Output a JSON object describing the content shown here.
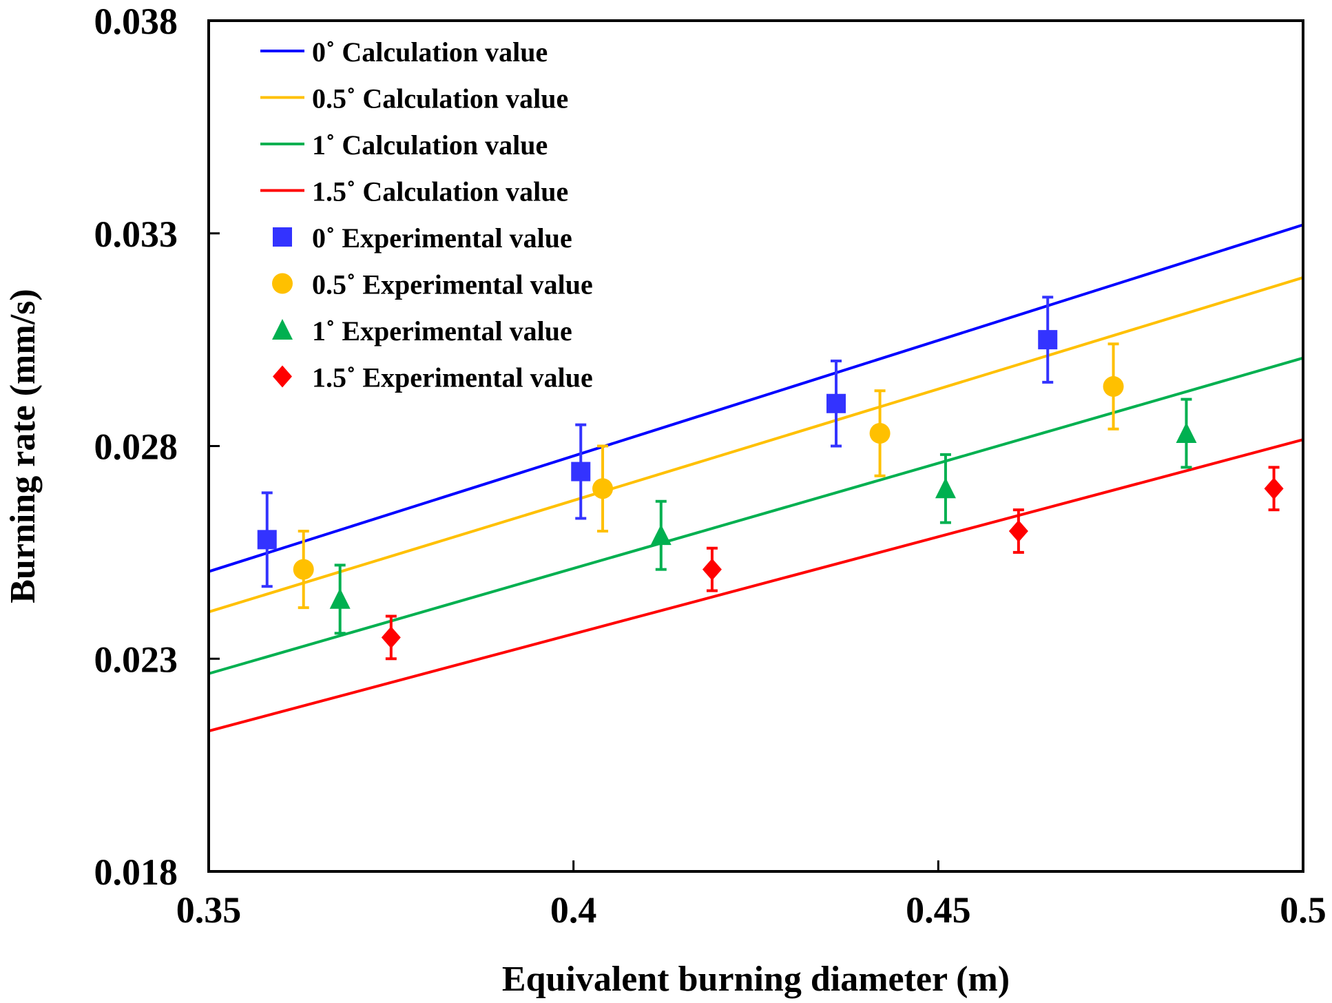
{
  "chart_data": {
    "type": "scatter",
    "title": "",
    "xlabel": "Equivalent burning diameter (m)",
    "ylabel": "Burning rate (mm/s)",
    "xlim": [
      0.35,
      0.5
    ],
    "ylim": [
      0.018,
      0.038
    ],
    "x_ticks": [
      0.35,
      0.4,
      0.45,
      0.5
    ],
    "x_tick_labels": [
      "0.35",
      "0.4",
      "0.45",
      "0.5"
    ],
    "y_ticks": [
      0.018,
      0.023,
      0.028,
      0.033,
      0.038
    ],
    "y_tick_labels": [
      "0.018",
      "0.023",
      "0.028",
      "0.033",
      "0.038"
    ],
    "grid": false,
    "legend_position": "top-left",
    "line_series": [
      {
        "name": "0˚ Calculation value",
        "color": "#0000ff",
        "x": [
          0.35,
          0.5
        ],
        "y": [
          0.02505,
          0.0332
        ]
      },
      {
        "name": "0.5˚ Calculation value",
        "color": "#ffc000",
        "x": [
          0.35,
          0.5
        ],
        "y": [
          0.0241,
          0.03196
        ]
      },
      {
        "name": "1˚ Calculation value",
        "color": "#00b050",
        "x": [
          0.35,
          0.5
        ],
        "y": [
          0.02265,
          0.03007
        ]
      },
      {
        "name": "1.5˚ Calculation value",
        "color": "#ff0000",
        "x": [
          0.35,
          0.5
        ],
        "y": [
          0.0213,
          0.02815
        ]
      }
    ],
    "point_series": [
      {
        "name": "0˚ Experimental value",
        "color": "#3333ff",
        "marker": "square",
        "x": [
          0.358,
          0.401,
          0.436,
          0.465
        ],
        "y": [
          0.0258,
          0.0274,
          0.029,
          0.0305
        ],
        "err": [
          0.0011,
          0.0011,
          0.001,
          0.001
        ]
      },
      {
        "name": "0.5˚ Experimental value",
        "color": "#ffc000",
        "marker": "circle",
        "x": [
          0.363,
          0.404,
          0.442,
          0.474
        ],
        "y": [
          0.0251,
          0.027,
          0.0283,
          0.0294
        ],
        "err": [
          0.0009,
          0.001,
          0.001,
          0.001
        ]
      },
      {
        "name": "1˚ Experimental value",
        "color": "#00b050",
        "marker": "triangle",
        "x": [
          0.368,
          0.412,
          0.451,
          0.484
        ],
        "y": [
          0.0244,
          0.0259,
          0.027,
          0.0283
        ],
        "err": [
          0.0008,
          0.0008,
          0.0008,
          0.0008
        ]
      },
      {
        "name": "1.5˚ Experimental value",
        "color": "#ff0000",
        "marker": "diamond",
        "x": [
          0.375,
          0.419,
          0.461,
          0.496
        ],
        "y": [
          0.0235,
          0.0251,
          0.026,
          0.027
        ],
        "err": [
          0.0005,
          0.0005,
          0.0005,
          0.0005
        ]
      }
    ]
  }
}
